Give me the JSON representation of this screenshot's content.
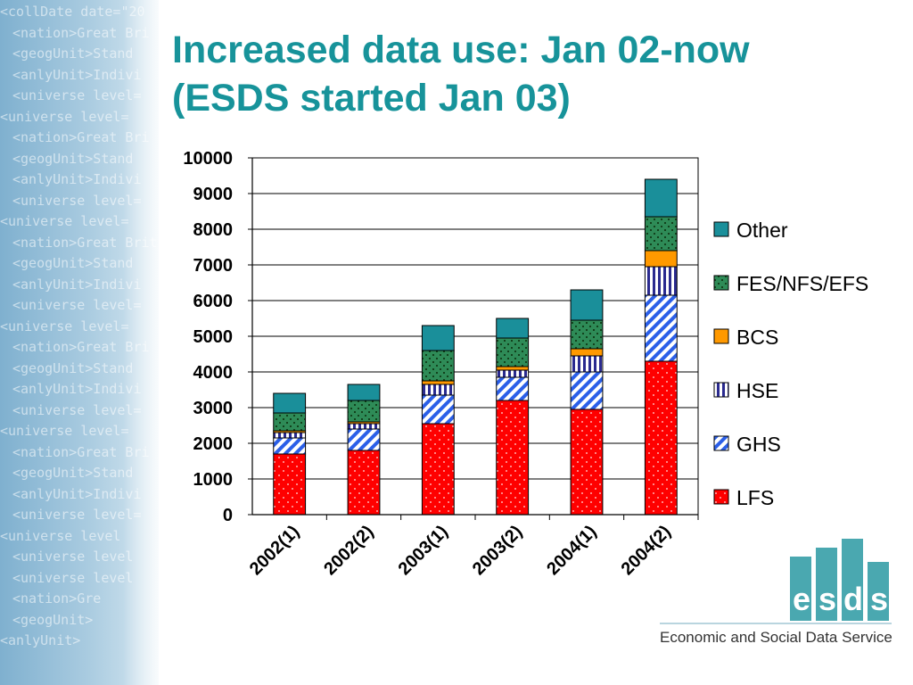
{
  "slide": {
    "title": "Increased data use: Jan 02-now",
    "subtitle": "(ESDS started Jan 03)"
  },
  "decor": {
    "xml_lines": [
      "<collDate date=\"20",
      "<nation>Great Bri",
      "<geogUnit>Stand",
      "<anlyUnit>Indivi",
      "<universe level=",
      "<universe level=",
      "<nation>Great Bri",
      "<geogUnit>Stand",
      "<anlyUnit>Indivi",
      "<universe level=",
      "<universe level=",
      "<nation>Great Brit",
      "<geogUnit>Stand",
      "<anlyUnit>Indivi",
      "<universe level=",
      "<universe level=",
      "<nation>Great Bri",
      "<geogUnit>Stand",
      "<anlyUnit>Indivi",
      "<universe level=",
      "<universe level=",
      "<nation>Great Bri",
      "<geogUnit>Stand",
      "<anlyUnit>Indivi",
      "<universe level=",
      "<universe level",
      "<universe level",
      "<universe level",
      "<nation>Gre",
      "<geogUnit>",
      "<anlyUnit>"
    ]
  },
  "logo": {
    "letters": [
      "e",
      "s",
      "d",
      "s"
    ],
    "bar_color": "#4aa8b0",
    "tagline": "Economic and Social Data Service"
  },
  "chart_data": {
    "type": "bar",
    "stacked": true,
    "categories": [
      "2002(1)",
      "2002(2)",
      "2003(1)",
      "2003(2)",
      "2004(1)",
      "2004(2)"
    ],
    "ylim": [
      0,
      10000
    ],
    "yticks": [
      0,
      1000,
      2000,
      3000,
      4000,
      5000,
      6000,
      7000,
      8000,
      9000,
      10000
    ],
    "grid": true,
    "legend_position": "right",
    "series": [
      {
        "name": "LFS",
        "color": "#ff0000",
        "pattern": "dots-red",
        "values": [
          1700,
          1800,
          2550,
          3200,
          2950,
          4300
        ]
      },
      {
        "name": "GHS",
        "color": "#2b5fe8",
        "pattern": "diag-blue",
        "values": [
          450,
          600,
          800,
          650,
          1050,
          1850
        ]
      },
      {
        "name": "HSE",
        "color": "#2a2a8f",
        "pattern": "vert-navy",
        "values": [
          150,
          150,
          300,
          200,
          450,
          800
        ]
      },
      {
        "name": "BCS",
        "color": "#ff9900",
        "pattern": "solid-orange",
        "values": [
          50,
          50,
          100,
          100,
          200,
          450
        ]
      },
      {
        "name": "FES/NFS/EFS",
        "color": "#2e8b57",
        "pattern": "dots-green",
        "values": [
          500,
          600,
          850,
          800,
          800,
          950
        ]
      },
      {
        "name": "Other",
        "color": "#1a8f9a",
        "pattern": "solid-teal",
        "values": [
          550,
          450,
          700,
          550,
          850,
          1050
        ]
      }
    ]
  }
}
